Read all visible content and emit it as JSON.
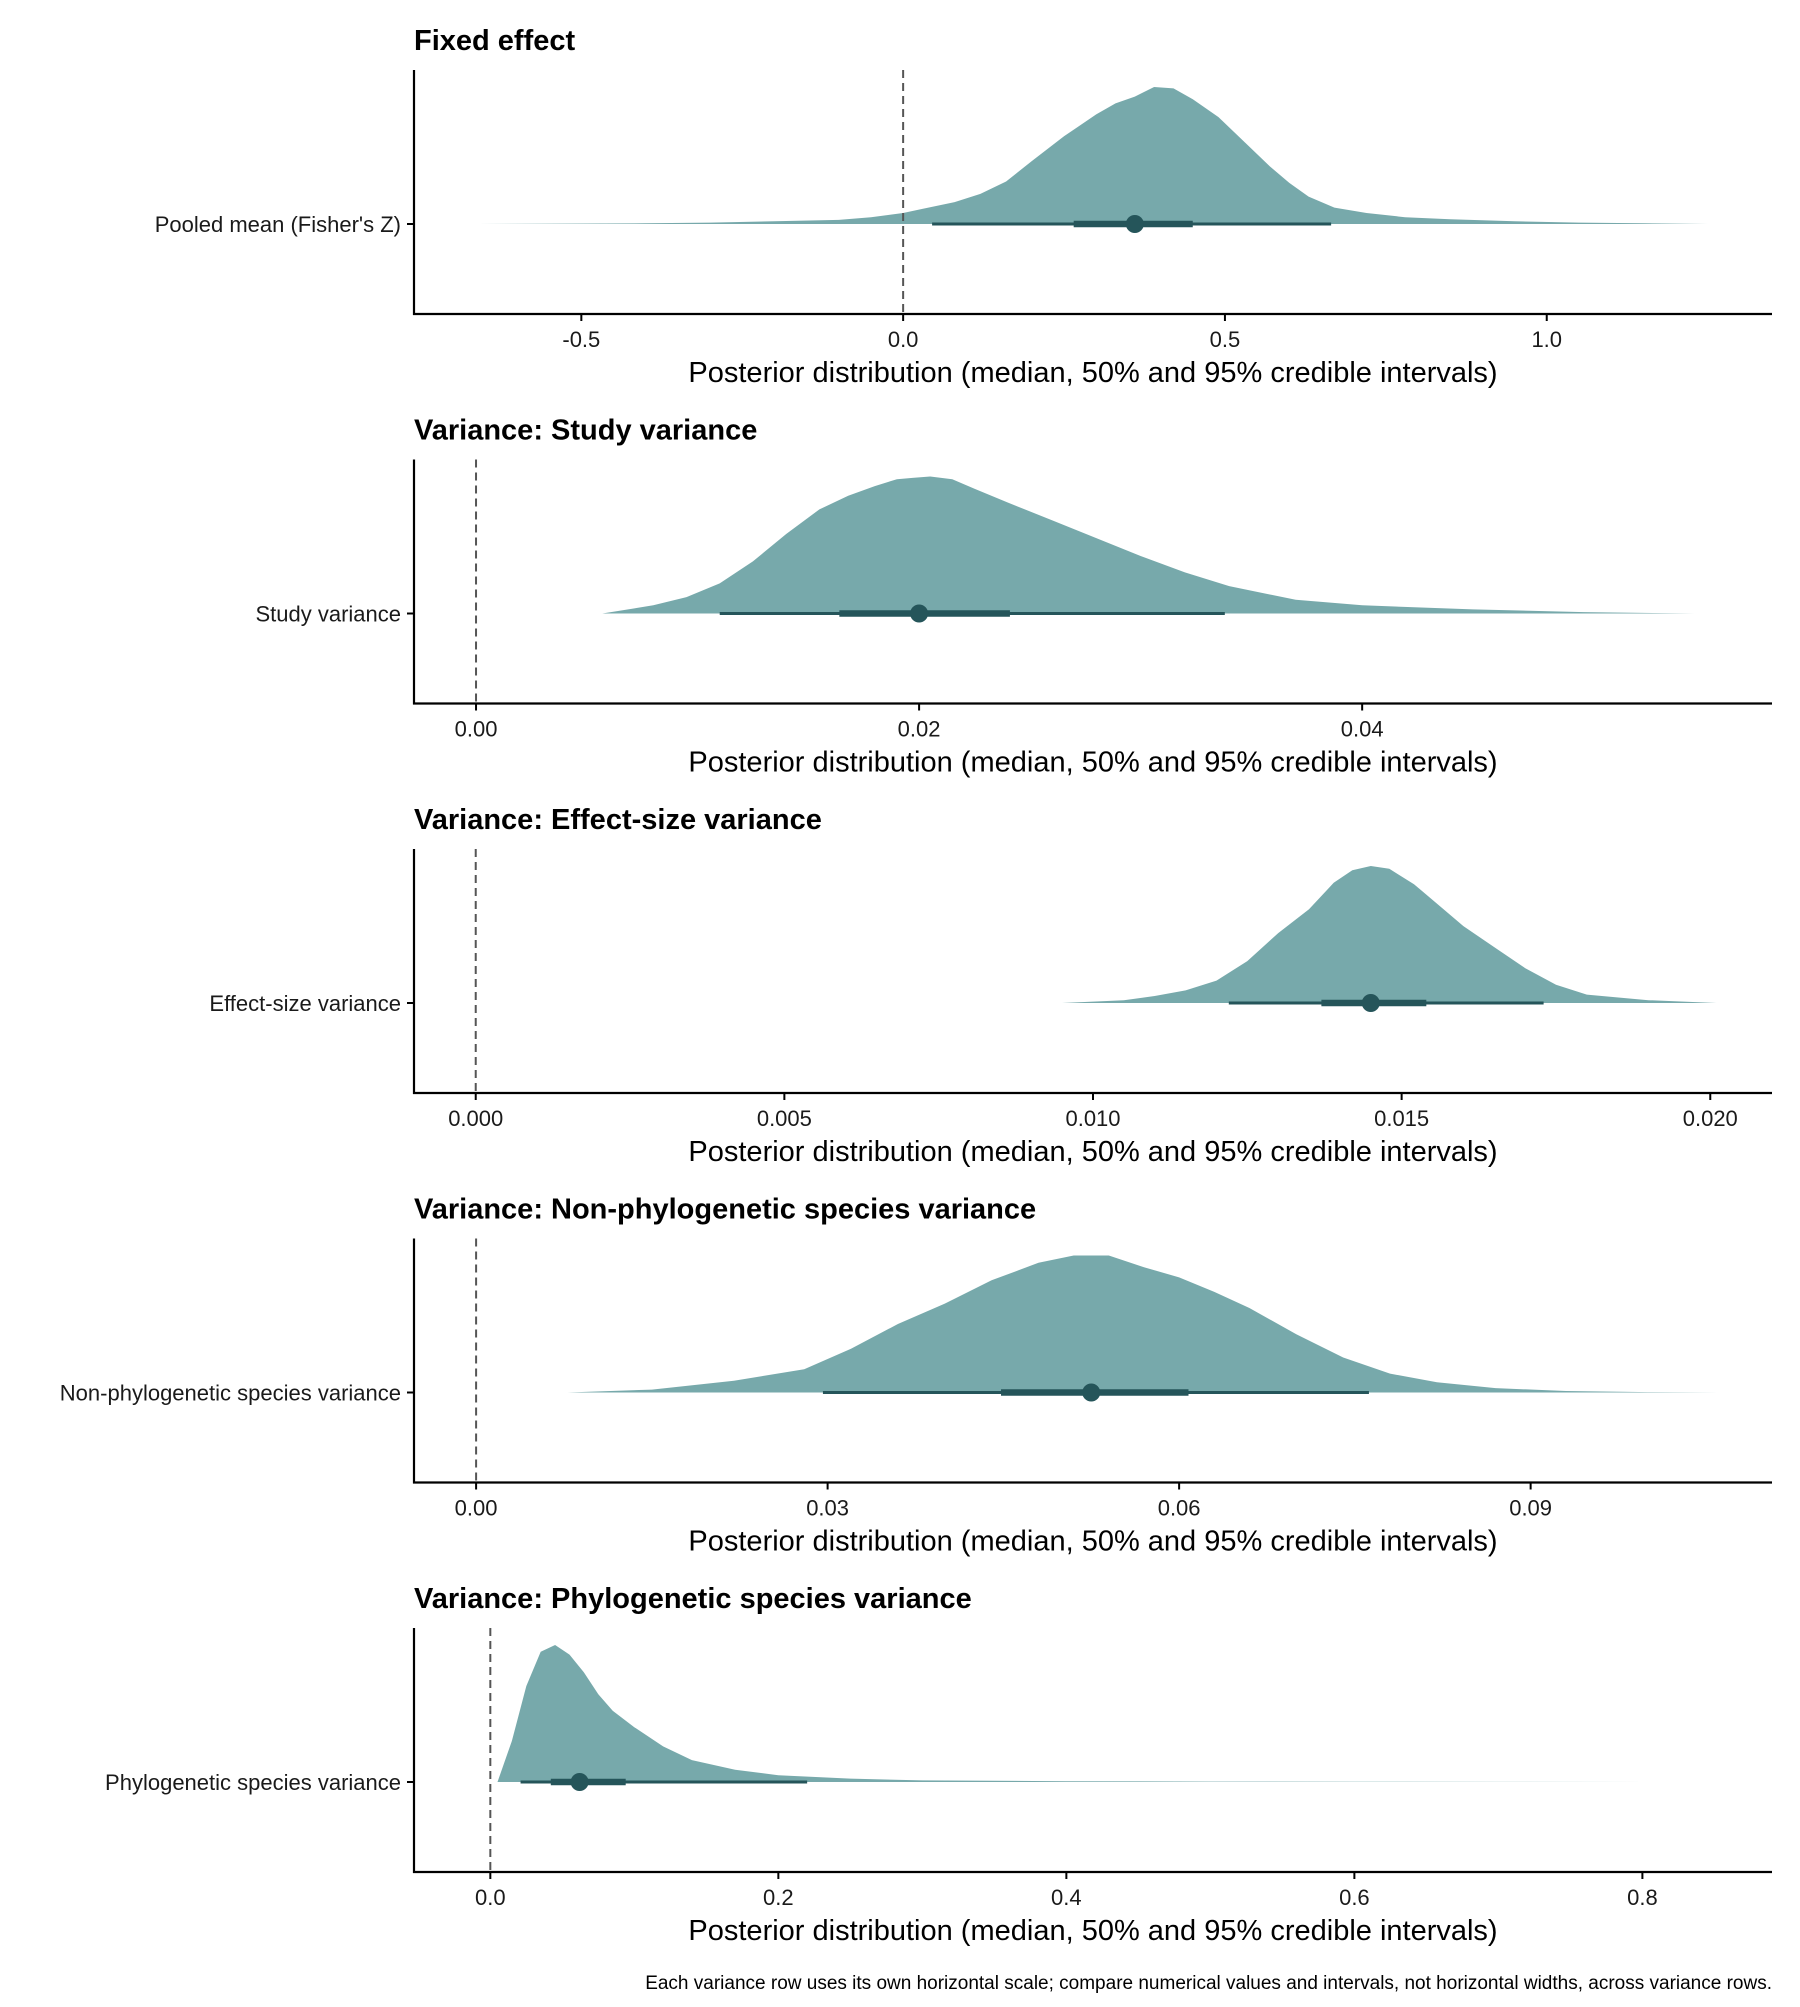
{
  "colors": {
    "density_fill": "#5f9a9c",
    "interval": "#25555a",
    "axis": "#000000",
    "reference_line": "#555555"
  },
  "caption": "Each variance row uses its own horizontal scale; compare numerical values and intervals, not horizontal widths, across variance rows.",
  "chart_data": [
    {
      "type": "area",
      "title": "Fixed effect",
      "row_label": "Pooled mean (Fisher's Z)",
      "xlabel": "Posterior distribution (median, 50% and 95% credible intervals)",
      "xlim": [
        -0.76,
        1.35
      ],
      "x_ticks": [
        -0.5,
        0.0,
        0.5,
        1.0
      ],
      "x_tick_labels": [
        "-0.5",
        "0.0",
        "0.5",
        "1.0"
      ],
      "reference_line_x": 0,
      "median": 0.36,
      "interval_50": [
        0.265,
        0.45
      ],
      "interval_95": [
        0.045,
        0.665
      ],
      "density": {
        "x": [
          -0.66,
          -0.4,
          -0.3,
          -0.2,
          -0.1,
          -0.05,
          0.0,
          0.03,
          0.08,
          0.12,
          0.16,
          0.2,
          0.25,
          0.3,
          0.33,
          0.36,
          0.39,
          0.42,
          0.45,
          0.49,
          0.53,
          0.57,
          0.6,
          0.63,
          0.67,
          0.72,
          0.78,
          0.85,
          0.95,
          1.05,
          1.15,
          1.25
        ],
        "y": [
          0.0,
          0.005,
          0.01,
          0.02,
          0.03,
          0.05,
          0.08,
          0.11,
          0.16,
          0.22,
          0.31,
          0.46,
          0.64,
          0.8,
          0.88,
          0.93,
          1.0,
          0.99,
          0.91,
          0.78,
          0.6,
          0.42,
          0.3,
          0.2,
          0.12,
          0.08,
          0.05,
          0.035,
          0.02,
          0.01,
          0.005,
          0.0
        ]
      }
    },
    {
      "type": "area",
      "title": "Variance: Study variance",
      "row_label": "Study variance",
      "xlabel": "Posterior distribution (median, 50% and 95% credible intervals)",
      "xlim": [
        -0.0028,
        0.0585
      ],
      "x_ticks": [
        0.0,
        0.02,
        0.04
      ],
      "x_tick_labels": [
        "0.00",
        "0.02",
        "0.04"
      ],
      "reference_line_x": 0,
      "median": 0.02,
      "interval_50": [
        0.0164,
        0.0241
      ],
      "interval_95": [
        0.011,
        0.0338
      ],
      "density": {
        "x": [
          0.0057,
          0.008,
          0.0095,
          0.011,
          0.0125,
          0.014,
          0.0155,
          0.0168,
          0.018,
          0.019,
          0.0197,
          0.0205,
          0.0215,
          0.0225,
          0.024,
          0.026,
          0.028,
          0.03,
          0.032,
          0.034,
          0.037,
          0.04,
          0.045,
          0.05,
          0.055
        ],
        "y": [
          0.0,
          0.06,
          0.12,
          0.22,
          0.38,
          0.58,
          0.76,
          0.86,
          0.93,
          0.98,
          0.99,
          1.0,
          0.98,
          0.91,
          0.81,
          0.68,
          0.55,
          0.42,
          0.3,
          0.2,
          0.1,
          0.06,
          0.03,
          0.01,
          0.0
        ]
      }
    },
    {
      "type": "area",
      "title": "Variance: Effect-size variance",
      "row_label": "Effect-size variance",
      "xlabel": "Posterior distribution (median, 50% and 95% credible intervals)",
      "xlim": [
        -0.001,
        0.021
      ],
      "x_ticks": [
        0.0,
        0.005,
        0.01,
        0.015,
        0.02
      ],
      "x_tick_labels": [
        "0.000",
        "0.005",
        "0.010",
        "0.015",
        "0.020"
      ],
      "reference_line_x": 0,
      "median": 0.0145,
      "interval_50": [
        0.0137,
        0.0154
      ],
      "interval_95": [
        0.0122,
        0.0173
      ],
      "density": {
        "x": [
          0.0095,
          0.0105,
          0.011,
          0.0115,
          0.012,
          0.0125,
          0.013,
          0.0135,
          0.0139,
          0.0142,
          0.0145,
          0.0148,
          0.0152,
          0.0156,
          0.016,
          0.0165,
          0.017,
          0.0175,
          0.018,
          0.019,
          0.0201
        ],
        "y": [
          0.0,
          0.02,
          0.05,
          0.09,
          0.16,
          0.3,
          0.5,
          0.67,
          0.86,
          0.95,
          0.98,
          0.96,
          0.85,
          0.7,
          0.55,
          0.4,
          0.25,
          0.13,
          0.06,
          0.02,
          0.0
        ]
      }
    },
    {
      "type": "area",
      "title": "Variance: Non-phylogenetic species variance",
      "row_label": "Non-phylogenetic species variance",
      "xlabel": "Posterior distribution (median, 50% and 95% credible intervals)",
      "xlim": [
        -0.0053,
        0.1106
      ],
      "x_ticks": [
        0.0,
        0.03,
        0.06,
        0.09
      ],
      "x_tick_labels": [
        "0.00",
        "0.03",
        "0.06",
        "0.09"
      ],
      "reference_line_x": 0,
      "median": 0.0525,
      "interval_50": [
        0.0448,
        0.0608
      ],
      "interval_95": [
        0.0296,
        0.0762
      ],
      "density": {
        "x": [
          0.0078,
          0.015,
          0.022,
          0.028,
          0.032,
          0.036,
          0.04,
          0.044,
          0.048,
          0.051,
          0.054,
          0.057,
          0.06,
          0.063,
          0.066,
          0.07,
          0.074,
          0.078,
          0.082,
          0.087,
          0.093,
          0.1,
          0.106
        ],
        "y": [
          0.0,
          0.02,
          0.08,
          0.16,
          0.3,
          0.47,
          0.61,
          0.77,
          0.89,
          0.94,
          0.94,
          0.86,
          0.79,
          0.69,
          0.58,
          0.4,
          0.24,
          0.13,
          0.07,
          0.03,
          0.01,
          0.003,
          0.0
        ]
      }
    },
    {
      "type": "area",
      "title": "Variance: Phylogenetic species variance",
      "row_label": "Phylogenetic species variance",
      "xlabel": "Posterior distribution (median, 50% and 95% credible intervals)",
      "xlim": [
        -0.053,
        0.89
      ],
      "x_ticks": [
        0.0,
        0.2,
        0.4,
        0.6,
        0.8
      ],
      "x_tick_labels": [
        "0.0",
        "0.2",
        "0.4",
        "0.6",
        "0.8"
      ],
      "reference_line_x": 0,
      "median": 0.062,
      "interval_50": [
        0.042,
        0.094
      ],
      "interval_95": [
        0.021,
        0.22
      ],
      "density": {
        "x": [
          0.005,
          0.015,
          0.025,
          0.035,
          0.045,
          0.055,
          0.065,
          0.075,
          0.085,
          0.1,
          0.12,
          0.14,
          0.17,
          0.2,
          0.25,
          0.3,
          0.4,
          0.5,
          0.6,
          0.7,
          0.85
        ],
        "y": [
          0.0,
          0.3,
          0.7,
          0.95,
          1.0,
          0.93,
          0.8,
          0.64,
          0.52,
          0.4,
          0.26,
          0.16,
          0.09,
          0.05,
          0.025,
          0.012,
          0.006,
          0.003,
          0.002,
          0.001,
          0.0
        ]
      }
    }
  ]
}
